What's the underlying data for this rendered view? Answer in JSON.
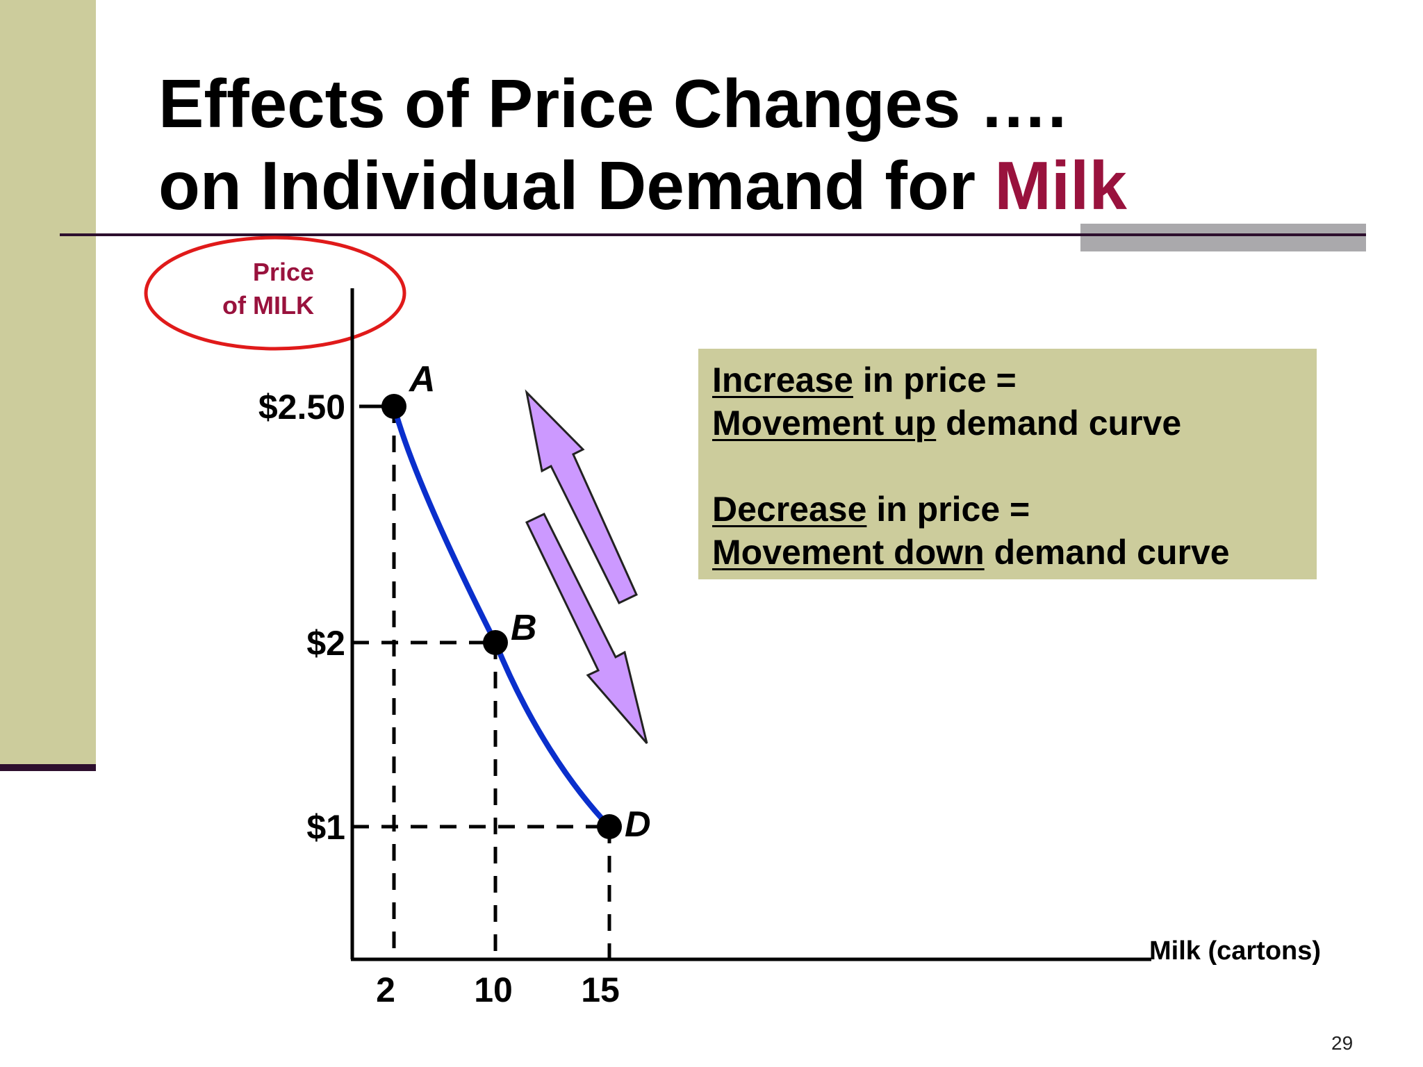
{
  "slide": {
    "title_line1": "Effects of Price Changes ….",
    "title_line2_prefix": "on Individual Demand for",
    "title_line2_accent": "Milk",
    "page_number": "29",
    "accent_color": "#99123d",
    "panel_color": "#cccc9c"
  },
  "info_box": {
    "increase_word": "Increase",
    "increase_rest": " in price =",
    "movement_up": "Movement up",
    "movement_up_rest": " demand curve",
    "decrease_word": "Decrease",
    "decrease_rest": " in price =",
    "movement_down": "Movement down",
    "movement_down_rest": " demand curve"
  },
  "chart_data": {
    "type": "line",
    "ylabel_line1": "Price",
    "ylabel_line2": "of MILK",
    "xlabel": "Milk (cartons)",
    "x_ticks": [
      {
        "value": 2,
        "label": "2"
      },
      {
        "value": 10,
        "label": "10"
      },
      {
        "value": 15,
        "label": "15"
      }
    ],
    "y_ticks": [
      {
        "value": 2.5,
        "label": "$2.50"
      },
      {
        "value": 2,
        "label": "$2"
      },
      {
        "value": 1,
        "label": "$1"
      }
    ],
    "points": [
      {
        "label": "A",
        "x": 2,
        "y": 2.5
      },
      {
        "label": "B",
        "x": 10,
        "y": 2
      },
      {
        "label": "D",
        "x": 15,
        "y": 1
      }
    ],
    "curve_color": "#0a2fcc",
    "arrow_color": "#cc99ff",
    "ylabel_circle_color": "#e01a1a"
  }
}
